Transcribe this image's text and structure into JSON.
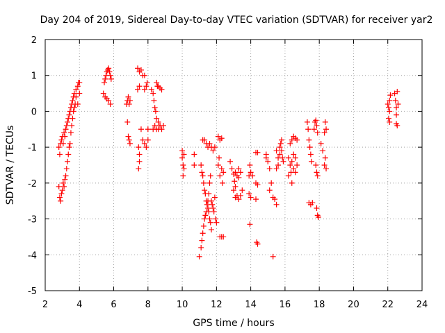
{
  "chart_data": {
    "type": "scatter",
    "title": "Day 204 of 2019, Sidereal Day-to-day VTEC variation (SDTVAR) for receiver yar2",
    "xlabel": "GPS time / hours",
    "ylabel": "SDTVAR / TECUs",
    "xlim": [
      2,
      24
    ],
    "ylim": [
      -5,
      2
    ],
    "xticks": [
      "2",
      "4",
      "6",
      "8",
      "10",
      "12",
      "14",
      "16",
      "18",
      "20",
      "22",
      "24"
    ],
    "yticks": [
      "-5",
      "-4",
      "-3",
      "-2",
      "-1",
      "0",
      "1",
      "2"
    ],
    "grid": true,
    "marker": "+",
    "marker_color": "#ff0000",
    "series": [
      {
        "name": "SDTVAR",
        "points": [
          [
            2.8,
            -1.0
          ],
          [
            2.85,
            -1.2
          ],
          [
            2.9,
            -0.9
          ],
          [
            2.95,
            -0.8
          ],
          [
            3.0,
            -0.7
          ],
          [
            3.05,
            -0.9
          ],
          [
            3.1,
            -0.6
          ],
          [
            3.15,
            -0.7
          ],
          [
            3.2,
            -0.5
          ],
          [
            3.25,
            -0.4
          ],
          [
            3.3,
            -0.3
          ],
          [
            3.35,
            -0.2
          ],
          [
            3.4,
            -0.1
          ],
          [
            3.45,
            0.0
          ],
          [
            3.5,
            0.1
          ],
          [
            3.55,
            0.2
          ],
          [
            3.6,
            0.3
          ],
          [
            3.65,
            0.4
          ],
          [
            3.7,
            0.5
          ],
          [
            3.8,
            0.6
          ],
          [
            3.9,
            0.7
          ],
          [
            3.95,
            0.8
          ],
          [
            4.0,
            0.8
          ],
          [
            2.8,
            -2.1
          ],
          [
            2.85,
            -2.4
          ],
          [
            2.9,
            -2.5
          ],
          [
            2.95,
            -2.3
          ],
          [
            3.0,
            -2.2
          ],
          [
            3.05,
            -2.0
          ],
          [
            3.1,
            -2.1
          ],
          [
            3.15,
            -1.9
          ],
          [
            3.2,
            -1.8
          ],
          [
            3.25,
            -1.6
          ],
          [
            3.3,
            -1.4
          ],
          [
            3.35,
            -1.2
          ],
          [
            3.4,
            -1.0
          ],
          [
            3.45,
            -0.9
          ],
          [
            3.5,
            -0.6
          ],
          [
            3.55,
            -0.4
          ],
          [
            3.6,
            -0.2
          ],
          [
            3.65,
            0.0
          ],
          [
            3.7,
            0.1
          ],
          [
            3.75,
            0.2
          ],
          [
            3.8,
            0.4
          ],
          [
            3.9,
            0.2
          ],
          [
            4.0,
            0.5
          ],
          [
            5.4,
            0.5
          ],
          [
            5.5,
            0.4
          ],
          [
            5.6,
            0.35
          ],
          [
            5.7,
            0.3
          ],
          [
            5.8,
            0.2
          ],
          [
            5.45,
            0.8
          ],
          [
            5.5,
            0.9
          ],
          [
            5.55,
            1.0
          ],
          [
            5.6,
            1.1
          ],
          [
            5.65,
            1.15
          ],
          [
            5.7,
            1.2
          ],
          [
            5.75,
            1.1
          ],
          [
            5.8,
            1.0
          ],
          [
            5.85,
            0.9
          ],
          [
            6.75,
            0.2
          ],
          [
            6.8,
            0.3
          ],
          [
            6.85,
            0.4
          ],
          [
            6.9,
            0.2
          ],
          [
            6.95,
            0.3
          ],
          [
            6.8,
            -0.3
          ],
          [
            6.85,
            -0.7
          ],
          [
            6.9,
            -0.8
          ],
          [
            6.95,
            -0.9
          ],
          [
            7.4,
            1.2
          ],
          [
            7.5,
            1.1
          ],
          [
            7.6,
            1.15
          ],
          [
            7.7,
            1.0
          ],
          [
            7.8,
            1.0
          ],
          [
            7.4,
            0.6
          ],
          [
            7.5,
            0.7
          ],
          [
            7.45,
            -1.0
          ],
          [
            7.5,
            -1.2
          ],
          [
            7.5,
            -1.4
          ],
          [
            7.45,
            -1.6
          ],
          [
            7.6,
            -0.5
          ],
          [
            7.8,
            0.6
          ],
          [
            7.9,
            0.7
          ],
          [
            7.95,
            0.8
          ],
          [
            7.7,
            -0.8
          ],
          [
            7.8,
            -0.9
          ],
          [
            7.9,
            -1.0
          ],
          [
            8.0,
            -0.8
          ],
          [
            8.0,
            -0.5
          ],
          [
            8.2,
            0.6
          ],
          [
            8.3,
            0.5
          ],
          [
            8.35,
            0.3
          ],
          [
            8.4,
            0.1
          ],
          [
            8.45,
            0.0
          ],
          [
            8.5,
            -0.2
          ],
          [
            8.6,
            -0.3
          ],
          [
            8.7,
            -0.4
          ],
          [
            8.8,
            -0.5
          ],
          [
            8.5,
            0.8
          ],
          [
            8.55,
            0.7
          ],
          [
            8.6,
            0.7
          ],
          [
            8.7,
            0.65
          ],
          [
            8.8,
            0.6
          ],
          [
            8.3,
            -0.5
          ],
          [
            8.4,
            -0.4
          ],
          [
            8.5,
            -0.5
          ],
          [
            8.6,
            -0.5
          ],
          [
            8.7,
            -0.4
          ],
          [
            8.9,
            -0.4
          ],
          [
            10.0,
            -1.1
          ],
          [
            10.0,
            -1.3
          ],
          [
            10.05,
            -1.5
          ],
          [
            10.1,
            -1.6
          ],
          [
            10.05,
            -1.8
          ],
          [
            10.1,
            -1.2
          ],
          [
            10.7,
            -1.2
          ],
          [
            10.7,
            -1.5
          ],
          [
            11.2,
            -0.8
          ],
          [
            11.3,
            -0.8
          ],
          [
            11.4,
            -0.9
          ],
          [
            11.5,
            -1.0
          ],
          [
            11.6,
            -0.9
          ],
          [
            11.7,
            -1.0
          ],
          [
            11.8,
            -1.1
          ],
          [
            11.9,
            -1.0
          ],
          [
            11.0,
            -4.05
          ],
          [
            11.1,
            -3.8
          ],
          [
            11.15,
            -3.6
          ],
          [
            11.2,
            -3.4
          ],
          [
            11.25,
            -3.2
          ],
          [
            11.3,
            -3.0
          ],
          [
            11.35,
            -2.9
          ],
          [
            11.4,
            -2.8
          ],
          [
            11.45,
            -2.6
          ],
          [
            11.5,
            -2.5
          ],
          [
            11.55,
            -2.3
          ],
          [
            11.6,
            -2.0
          ],
          [
            11.65,
            -1.8
          ],
          [
            11.1,
            -1.5
          ],
          [
            11.15,
            -1.7
          ],
          [
            11.2,
            -1.8
          ],
          [
            11.25,
            -2.0
          ],
          [
            11.3,
            -2.2
          ],
          [
            11.35,
            -2.3
          ],
          [
            11.4,
            -2.5
          ],
          [
            11.5,
            -2.7
          ],
          [
            11.55,
            -2.8
          ],
          [
            11.6,
            -3.0
          ],
          [
            11.65,
            -3.1
          ],
          [
            11.7,
            -3.3
          ],
          [
            11.7,
            -2.5
          ],
          [
            11.75,
            -2.6
          ],
          [
            11.8,
            -2.7
          ],
          [
            11.85,
            -2.8
          ],
          [
            11.9,
            -2.4
          ],
          [
            11.95,
            -3.0
          ],
          [
            12.0,
            -3.1
          ],
          [
            12.1,
            -0.7
          ],
          [
            12.2,
            -0.8
          ],
          [
            12.3,
            -0.75
          ],
          [
            12.1,
            -1.5
          ],
          [
            12.2,
            -1.8
          ],
          [
            12.3,
            -1.6
          ],
          [
            12.35,
            -2.0
          ],
          [
            12.4,
            -1.7
          ],
          [
            12.2,
            -3.5
          ],
          [
            12.3,
            -3.5
          ],
          [
            12.4,
            -3.5
          ],
          [
            12.15,
            -1.3
          ],
          [
            12.8,
            -1.4
          ],
          [
            12.9,
            -1.6
          ],
          [
            13.0,
            -1.75
          ],
          [
            13.1,
            -1.7
          ],
          [
            13.2,
            -1.8
          ],
          [
            13.3,
            -1.85
          ],
          [
            13.05,
            -1.95
          ],
          [
            13.1,
            -2.1
          ],
          [
            13.2,
            -2.35
          ],
          [
            13.3,
            -2.45
          ],
          [
            13.4,
            -2.35
          ],
          [
            13.5,
            -2.2
          ],
          [
            13.3,
            -1.6
          ],
          [
            13.4,
            -1.7
          ],
          [
            13.0,
            -2.2
          ],
          [
            13.1,
            -2.4
          ],
          [
            13.9,
            -1.8
          ],
          [
            14.0,
            -1.7
          ],
          [
            13.95,
            -1.5
          ],
          [
            14.1,
            -1.8
          ],
          [
            14.0,
            -2.4
          ],
          [
            13.9,
            -2.3
          ],
          [
            13.95,
            -3.15
          ],
          [
            14.3,
            -1.15
          ],
          [
            14.4,
            -1.15
          ],
          [
            14.3,
            -2.0
          ],
          [
            14.4,
            -2.05
          ],
          [
            14.3,
            -2.45
          ],
          [
            14.35,
            -3.65
          ],
          [
            14.4,
            -3.7
          ],
          [
            14.9,
            -1.3
          ],
          [
            15.0,
            -1.4
          ],
          [
            15.1,
            -1.6
          ],
          [
            14.9,
            -1.2
          ],
          [
            15.1,
            -2.2
          ],
          [
            15.2,
            -2.0
          ],
          [
            15.3,
            -2.4
          ],
          [
            15.4,
            -2.45
          ],
          [
            15.5,
            -2.6
          ],
          [
            15.3,
            -4.05
          ],
          [
            15.5,
            -1.6
          ],
          [
            15.6,
            -1.5
          ],
          [
            15.7,
            -1.2
          ],
          [
            15.6,
            -1.3
          ],
          [
            15.7,
            -1.0
          ],
          [
            15.75,
            -0.9
          ],
          [
            15.8,
            -1.1
          ],
          [
            15.85,
            -1.3
          ],
          [
            15.9,
            -1.4
          ],
          [
            15.5,
            -1.1
          ],
          [
            15.8,
            -0.8
          ],
          [
            16.2,
            -1.3
          ],
          [
            16.3,
            -1.5
          ],
          [
            16.35,
            -1.7
          ],
          [
            16.4,
            -2.0
          ],
          [
            16.2,
            -1.8
          ],
          [
            16.3,
            -0.9
          ],
          [
            16.4,
            -0.8
          ],
          [
            16.5,
            -0.7
          ],
          [
            16.6,
            -0.75
          ],
          [
            16.7,
            -0.8
          ],
          [
            16.5,
            -1.2
          ],
          [
            16.6,
            -1.3
          ],
          [
            16.7,
            -1.5
          ],
          [
            16.5,
            -1.6
          ],
          [
            16.6,
            -1.7
          ],
          [
            16.4,
            -1.4
          ],
          [
            17.3,
            -0.3
          ],
          [
            17.35,
            -0.5
          ],
          [
            17.4,
            -0.8
          ],
          [
            17.45,
            -1.0
          ],
          [
            17.5,
            -1.2
          ],
          [
            17.55,
            -1.4
          ],
          [
            17.4,
            -2.55
          ],
          [
            17.5,
            -2.6
          ],
          [
            17.6,
            -2.55
          ],
          [
            17.7,
            -0.5
          ],
          [
            17.75,
            -0.3
          ],
          [
            17.8,
            -0.25
          ],
          [
            17.85,
            -0.4
          ],
          [
            17.9,
            -0.6
          ],
          [
            17.8,
            -1.5
          ],
          [
            17.85,
            -1.7
          ],
          [
            17.9,
            -1.8
          ],
          [
            17.85,
            -2.7
          ],
          [
            17.9,
            -2.9
          ],
          [
            17.95,
            -2.95
          ],
          [
            18.1,
            -0.9
          ],
          [
            18.2,
            -1.1
          ],
          [
            18.3,
            -0.6
          ],
          [
            18.35,
            -0.3
          ],
          [
            18.4,
            -0.5
          ],
          [
            18.3,
            -1.5
          ],
          [
            18.4,
            -1.6
          ],
          [
            18.35,
            -1.3
          ],
          [
            22.0,
            0.2
          ],
          [
            22.05,
            0.1
          ],
          [
            22.1,
            0.3
          ],
          [
            22.15,
            0.45
          ],
          [
            22.05,
            -0.2
          ],
          [
            22.1,
            -0.3
          ],
          [
            22.1,
            0.0
          ],
          [
            22.4,
            0.5
          ],
          [
            22.45,
            0.3
          ],
          [
            22.5,
            0.1
          ],
          [
            22.5,
            -0.1
          ],
          [
            22.55,
            0.55
          ],
          [
            22.6,
            0.2
          ],
          [
            22.5,
            -0.35
          ],
          [
            22.55,
            -0.4
          ]
        ]
      }
    ]
  }
}
